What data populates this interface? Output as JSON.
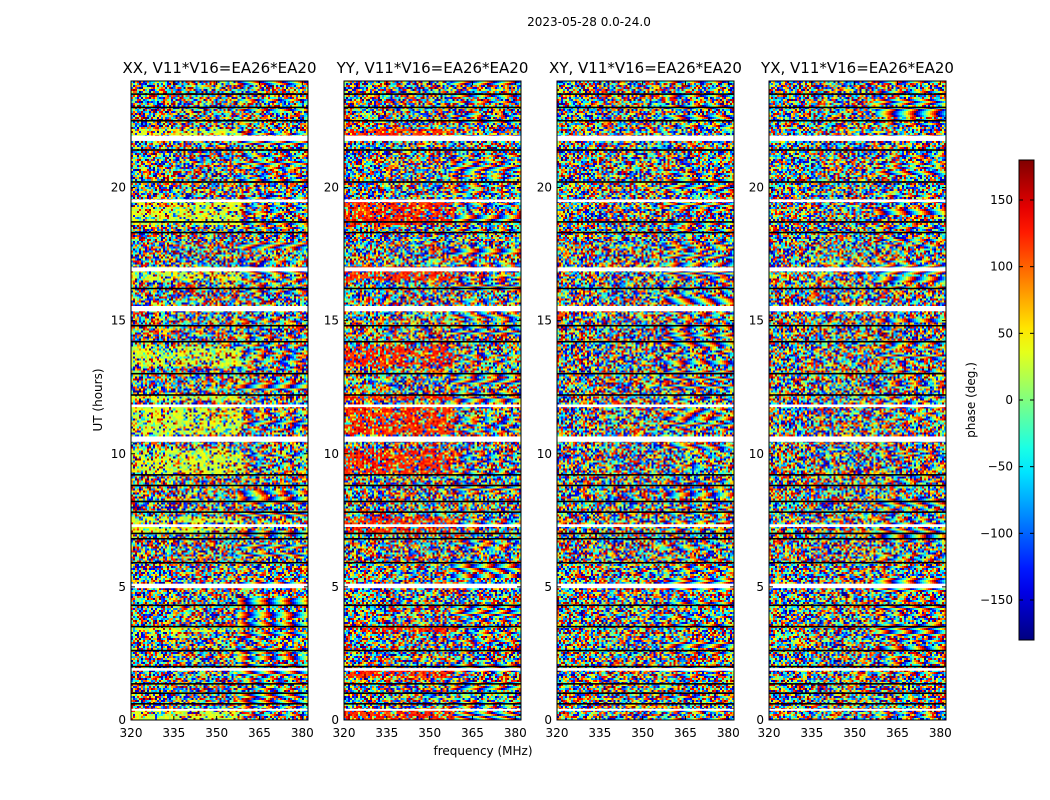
{
  "figure": {
    "suptitle": "2023-05-28 0.0-24.0",
    "xlabel": "frequency (MHz)",
    "ylabel": "UT (hours)",
    "colorbar_label": "phase (deg.)"
  },
  "chart_data": {
    "type": "heatmap",
    "colormap": "jet",
    "colors": {
      "low": "#00007f",
      "mid": "#7fff7f",
      "high": "#7f0000",
      "flag_line": "#000000",
      "missing": "#ffffff"
    },
    "x": {
      "label": "frequency (MHz)",
      "lim": [
        320,
        382
      ],
      "ticks": [
        320,
        335,
        350,
        365,
        380
      ]
    },
    "y": {
      "label": "UT (hours)",
      "lim": [
        0,
        24
      ],
      "ticks": [
        0,
        5,
        10,
        15,
        20
      ]
    },
    "colorbar": {
      "label": "phase (deg.)",
      "lim": [
        -180,
        180
      ],
      "ticks": [
        -150,
        -100,
        -50,
        0,
        50,
        100,
        150
      ]
    },
    "panels": [
      {
        "title": "XX, V11*V16=EA26*EA20",
        "seed": 11,
        "bias": 0.58,
        "coherence": 0.55,
        "coherent_bands": [
          [
            0.0,
            0.35
          ],
          [
            3.3,
            3.5
          ],
          [
            7.0,
            7.3
          ],
          [
            7.4,
            7.65
          ],
          [
            9.2,
            10.2
          ],
          [
            10.7,
            11.8
          ],
          [
            12.0,
            12.2
          ],
          [
            13.3,
            14.0
          ],
          [
            16.5,
            17.0
          ],
          [
            18.6,
            19.5
          ],
          [
            21.9,
            22.2
          ]
        ]
      },
      {
        "title": "YY, V11*V16=EA26*EA20",
        "seed": 23,
        "bias": 0.84,
        "coherence": 0.55,
        "coherent_bands": [
          [
            0.0,
            0.35
          ],
          [
            1.6,
            1.9
          ],
          [
            3.3,
            3.5
          ],
          [
            7.0,
            7.65
          ],
          [
            9.2,
            10.2
          ],
          [
            10.7,
            11.8
          ],
          [
            12.0,
            12.2
          ],
          [
            13.3,
            14.0
          ],
          [
            16.5,
            17.0
          ],
          [
            18.6,
            19.5
          ],
          [
            21.9,
            22.2
          ]
        ]
      },
      {
        "title": "XY, V11*V16=EA26*EA20",
        "seed": 37,
        "bias": 0.5,
        "coherence": 0.0,
        "coherent_bands": []
      },
      {
        "title": "YX, V11*V16=EA26*EA20",
        "seed": 53,
        "bias": 0.5,
        "coherence": 0.0,
        "coherent_bands": []
      }
    ],
    "data_gaps_hours": [
      [
        0.35,
        0.42
      ],
      [
        1.85,
        1.95
      ],
      [
        4.95,
        5.12
      ],
      [
        7.25,
        7.35
      ],
      [
        10.45,
        10.65
      ],
      [
        11.75,
        11.85
      ],
      [
        15.35,
        15.55
      ],
      [
        16.85,
        17.0
      ],
      [
        19.45,
        19.55
      ],
      [
        21.75,
        21.95
      ]
    ],
    "flag_lines_hours": [
      0.6,
      1.0,
      1.35,
      2.0,
      2.6,
      3.5,
      4.3,
      5.9,
      6.8,
      7.0,
      7.8,
      8.2,
      8.8,
      9.2,
      12.2,
      13.0,
      14.2,
      14.8,
      16.2,
      18.3,
      18.7,
      20.2,
      21.4,
      22.5,
      23.0,
      23.5
    ]
  }
}
